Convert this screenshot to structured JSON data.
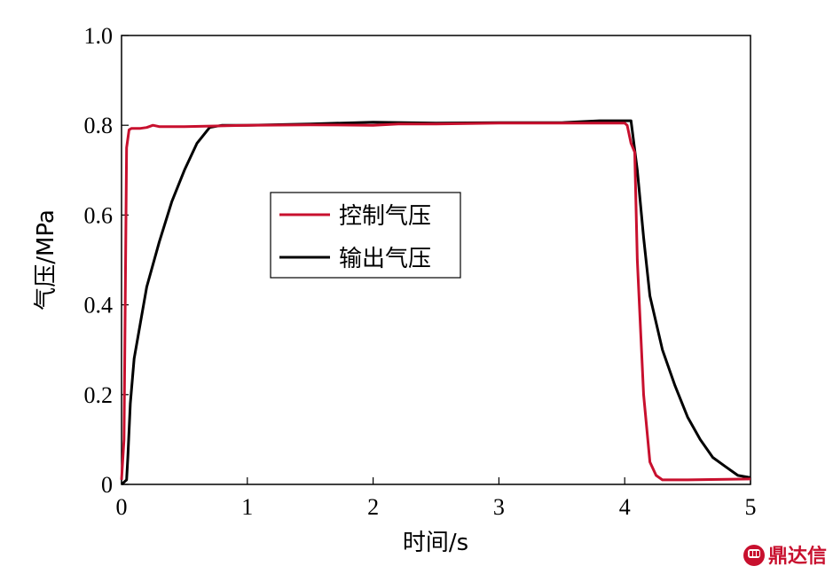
{
  "chart_data": {
    "type": "line",
    "xlabel": "时间/s",
    "ylabel": "气压/MPa",
    "xlim": [
      0,
      5
    ],
    "ylim": [
      0,
      1.0
    ],
    "xticks": [
      "0",
      "1",
      "2",
      "3",
      "4",
      "5"
    ],
    "yticks": [
      "0",
      "0.2",
      "0.4",
      "0.6",
      "0.8",
      "1.0"
    ],
    "xtick_values": [
      0,
      1,
      2,
      3,
      4,
      5
    ],
    "ytick_values": [
      0,
      0.2,
      0.4,
      0.6,
      0.8,
      1.0
    ],
    "grid": false,
    "legend_position": "center-left",
    "series": [
      {
        "name": "控制气压",
        "color": "#c8102e",
        "x": [
          0,
          0.02,
          0.04,
          0.06,
          0.08,
          0.15,
          0.2,
          0.25,
          0.3,
          0.5,
          1.0,
          1.5,
          2.0,
          2.2,
          2.5,
          3.0,
          3.5,
          4.0,
          4.02,
          4.05,
          4.08,
          4.1,
          4.15,
          4.2,
          4.25,
          4.3,
          4.5,
          5.0
        ],
        "y": [
          0.01,
          0.1,
          0.75,
          0.79,
          0.793,
          0.793,
          0.795,
          0.8,
          0.797,
          0.797,
          0.8,
          0.801,
          0.8,
          0.803,
          0.803,
          0.805,
          0.805,
          0.805,
          0.8,
          0.76,
          0.74,
          0.5,
          0.2,
          0.05,
          0.02,
          0.01,
          0.01,
          0.012
        ]
      },
      {
        "name": "输出气压",
        "color": "#000000",
        "x": [
          0,
          0.04,
          0.05,
          0.07,
          0.1,
          0.15,
          0.2,
          0.3,
          0.4,
          0.5,
          0.6,
          0.7,
          0.8,
          1.0,
          1.5,
          2.0,
          2.5,
          3.0,
          3.5,
          3.8,
          3.9,
          4.0,
          4.05,
          4.1,
          4.15,
          4.2,
          4.3,
          4.4,
          4.5,
          4.6,
          4.7,
          4.8,
          4.9,
          5.0
        ],
        "y": [
          0.0,
          0.01,
          0.06,
          0.18,
          0.28,
          0.36,
          0.44,
          0.54,
          0.63,
          0.7,
          0.76,
          0.795,
          0.8,
          0.8,
          0.803,
          0.807,
          0.805,
          0.806,
          0.806,
          0.81,
          0.81,
          0.81,
          0.81,
          0.7,
          0.55,
          0.42,
          0.3,
          0.22,
          0.15,
          0.1,
          0.06,
          0.04,
          0.02,
          0.015
        ]
      }
    ]
  },
  "watermark": {
    "text": "鼎达信",
    "color": "#c8102e",
    "icon": "fist-icon"
  }
}
